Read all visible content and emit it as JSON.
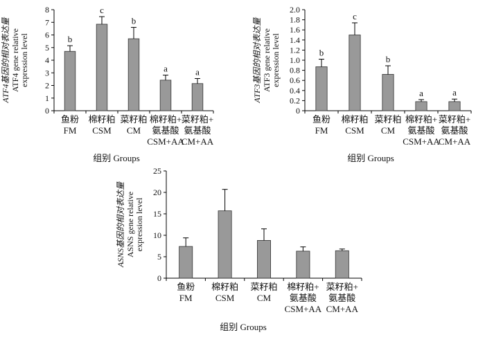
{
  "chart_data": [
    {
      "type": "bar",
      "ylabel_lines": [
        "ATF4基因的相对表达量",
        "ATF4 gene relative",
        "expression level"
      ],
      "xlabel": "组别 Groups",
      "categories": [
        {
          "zh": [
            "鱼粉"
          ],
          "en": "FM"
        },
        {
          "zh": [
            "棉籽粕"
          ],
          "en": "CSM"
        },
        {
          "zh": [
            "菜籽粕"
          ],
          "en": "CM"
        },
        {
          "zh": [
            "棉籽粕+",
            "氨基酸"
          ],
          "en": "CSM+AA"
        },
        {
          "zh": [
            "菜籽粕+",
            "氨基酸"
          ],
          "en": "CM+AA"
        }
      ],
      "values": [
        4.7,
        6.85,
        5.7,
        2.42,
        2.15
      ],
      "errors": [
        0.45,
        0.6,
        0.9,
        0.4,
        0.4
      ],
      "significance": [
        "b",
        "c",
        "b",
        "a",
        "a"
      ],
      "ylim": [
        0,
        8
      ],
      "yticks": [
        0,
        1,
        2,
        3,
        4,
        5,
        6,
        7,
        8
      ],
      "bar_color": "#999999"
    },
    {
      "type": "bar",
      "ylabel_lines": [
        "ATF3基因的相对表达量",
        "ATF3 gene relative",
        "expression level"
      ],
      "xlabel": "组别 Groups",
      "categories": [
        {
          "zh": [
            "鱼粉"
          ],
          "en": "FM"
        },
        {
          "zh": [
            "棉籽粕"
          ],
          "en": "CSM"
        },
        {
          "zh": [
            "菜籽粕"
          ],
          "en": "CM"
        },
        {
          "zh": [
            "棉籽粕+",
            "氨基酸"
          ],
          "en": "CSM+AA"
        },
        {
          "zh": [
            "菜籽粕+",
            "氨基酸"
          ],
          "en": "CM+AA"
        }
      ],
      "values": [
        0.87,
        1.5,
        0.72,
        0.18,
        0.18
      ],
      "errors": [
        0.15,
        0.24,
        0.17,
        0.04,
        0.05
      ],
      "significance": [
        "b",
        "c",
        "b",
        "a",
        "a"
      ],
      "ylim": [
        0,
        2.0
      ],
      "yticks": [
        "0",
        "0.2",
        "0.4",
        "0.6",
        "0.8",
        "1.0",
        "1.2",
        "1.4",
        "1.6",
        "1.8",
        "2.0"
      ],
      "bar_color": "#999999"
    },
    {
      "type": "bar",
      "ylabel_lines": [
        "ASNS基因的相对表达量",
        "ASNS gene relative",
        "expression level"
      ],
      "xlabel": "组别 Groups",
      "categories": [
        {
          "zh": [
            "鱼粉"
          ],
          "en": "FM"
        },
        {
          "zh": [
            "棉籽粕"
          ],
          "en": "CSM"
        },
        {
          "zh": [
            "菜籽粕"
          ],
          "en": "CM"
        },
        {
          "zh": [
            "棉籽粕+",
            "氨基酸"
          ],
          "en": "CSM+AA"
        },
        {
          "zh": [
            "菜籽粕+",
            "氨基酸"
          ],
          "en": "CM+AA"
        }
      ],
      "values": [
        7.4,
        15.7,
        8.8,
        6.3,
        6.4
      ],
      "errors": [
        2.0,
        5.0,
        2.7,
        1.0,
        0.4
      ],
      "significance": [
        "",
        "",
        "",
        "",
        ""
      ],
      "ylim": [
        0,
        25
      ],
      "yticks": [
        0,
        5,
        10,
        15,
        20,
        25
      ],
      "bar_color": "#999999"
    }
  ]
}
